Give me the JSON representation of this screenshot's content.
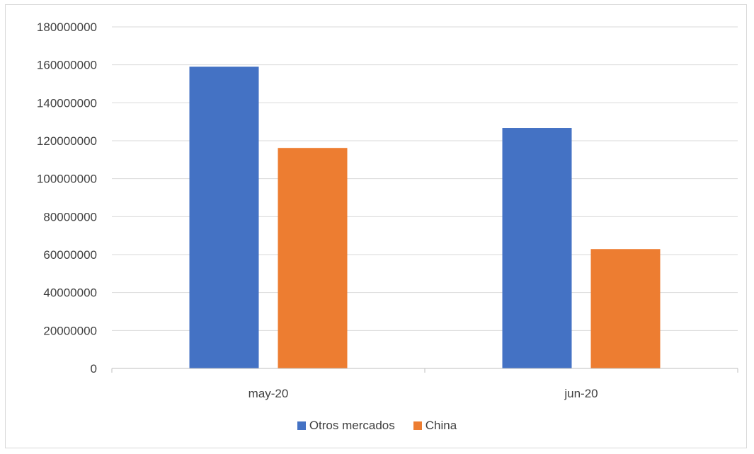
{
  "chart_data": {
    "type": "bar",
    "categories": [
      "may-20",
      "jun-20"
    ],
    "series": [
      {
        "name": "Otros mercados",
        "values": [
          159000000,
          126700000
        ],
        "color": "#4472C4"
      },
      {
        "name": "China",
        "values": [
          116200000,
          62900000
        ],
        "color": "#ED7D31"
      }
    ],
    "ylim": [
      0,
      180000000
    ],
    "yticks": [
      "0",
      "20000000",
      "40000000",
      "60000000",
      "80000000",
      "100000000",
      "120000000",
      "140000000",
      "160000000",
      "180000000"
    ],
    "grid": true,
    "legend_position": "bottom"
  }
}
